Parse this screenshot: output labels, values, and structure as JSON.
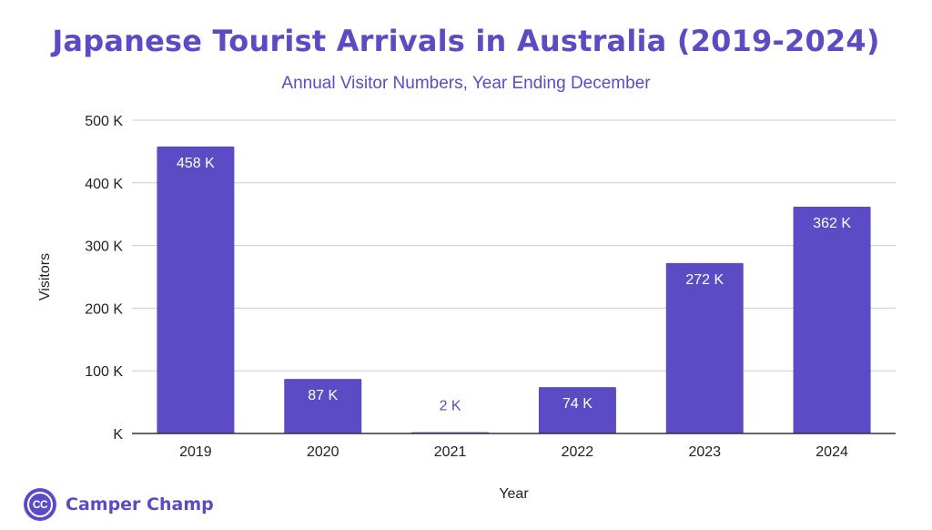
{
  "colors": {
    "bar": "#5b4bc4",
    "title": "#5b4bc4",
    "grid": "#cccccc",
    "axis": "#333333"
  },
  "chart_data": {
    "type": "bar",
    "title": "Japanese Tourist Arrivals in Australia (2019-2024)",
    "subtitle": "Annual Visitor Numbers, Year Ending December",
    "xlabel": "Year",
    "ylabel": "Visitors",
    "categories": [
      "2019",
      "2020",
      "2021",
      "2022",
      "2023",
      "2024"
    ],
    "values": [
      458,
      87,
      2,
      74,
      272,
      362
    ],
    "data_labels": [
      "458 K",
      "87 K",
      "2 K",
      "74 K",
      "272 K",
      "362 K"
    ],
    "y_ticks": [
      0,
      100,
      200,
      300,
      400,
      500
    ],
    "y_tick_labels": [
      "K",
      "100 K",
      "200 K",
      "300 K",
      "400 K",
      "500 K"
    ],
    "ylim": [
      0,
      500
    ],
    "grid": true,
    "legend": "none"
  },
  "brand": {
    "logo_text": "CC",
    "name": "Camper Champ"
  }
}
